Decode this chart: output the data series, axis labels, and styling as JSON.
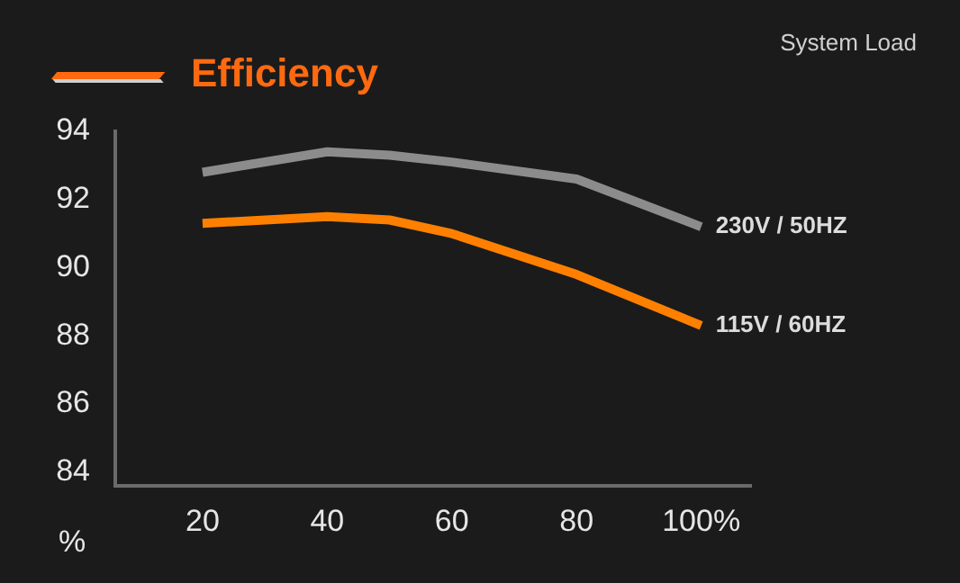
{
  "chart_data": {
    "type": "line",
    "title": "Efficiency",
    "subtitle": "System Load",
    "ylabel": "%",
    "x": [
      20,
      40,
      50,
      60,
      80,
      100
    ],
    "series": [
      {
        "name": "230V / 50HZ",
        "color": "#8c8c8c",
        "values": [
          92.8,
          93.4,
          93.3,
          93.1,
          92.6,
          91.2
        ]
      },
      {
        "name": "115V / 60HZ",
        "color": "#ff8000",
        "values": [
          91.3,
          91.5,
          91.4,
          91.0,
          89.8,
          88.3
        ]
      }
    ],
    "xlim": [
      6,
      108
    ],
    "xticks": [
      20,
      40,
      60,
      80,
      {
        "value": 100,
        "label": "100%"
      }
    ],
    "ylim": [
      83.6,
      94
    ],
    "yticks": [
      84,
      86,
      88,
      90,
      92,
      94
    ],
    "grid": false,
    "legend": false,
    "marker": "none",
    "line_style": "solid"
  }
}
